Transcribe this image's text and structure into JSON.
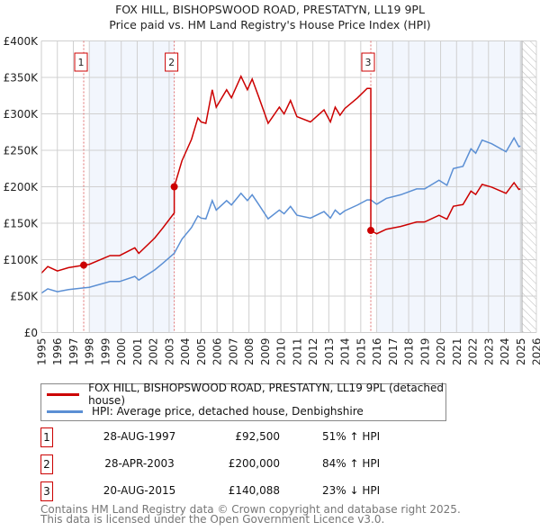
{
  "chart_data": {
    "type": "line",
    "title": "FOX HILL, BISHOPSWOOD ROAD, PRESTATYN, LL19 9PL",
    "subtitle": "Price paid vs. HM Land Registry's House Price Index (HPI)",
    "xlim": [
      1995,
      2026
    ],
    "ylim": [
      0,
      400000
    ],
    "y_ticks": [
      0,
      50000,
      100000,
      150000,
      200000,
      250000,
      300000,
      350000,
      400000
    ],
    "y_tick_labels": [
      "£0",
      "£50K",
      "£100K",
      "£150K",
      "£200K",
      "£250K",
      "£300K",
      "£350K",
      "£400K"
    ],
    "x_ticks": [
      "1995",
      "1996",
      "1997",
      "1998",
      "1999",
      "2000",
      "2001",
      "2002",
      "2003",
      "2004",
      "2005",
      "2006",
      "2007",
      "2008",
      "2009",
      "2010",
      "2011",
      "2012",
      "2013",
      "2014",
      "2015",
      "2016",
      "2017",
      "2018",
      "2019",
      "2020",
      "2021",
      "2022",
      "2023",
      "2024",
      "2025",
      "2026"
    ],
    "grid": true,
    "shaded_ranges": [
      [
        1998.0,
        2003.32
      ],
      [
        2016.0,
        2025.1
      ]
    ],
    "hatched_range": [
      2025.1,
      2026
    ],
    "colors": {
      "property": "#cc0000",
      "hpi": "#5b8fd4",
      "marker_border": "#cc0000"
    },
    "series": [
      {
        "name": "FOX HILL, BISHOPSWOOD ROAD, PRESTATYN, LL19 9PL (detached house)",
        "color": "#cc0000",
        "derived_from_hpi_ratios": [
          {
            "from": 1995,
            "ratio": 1.509
          },
          {
            "from": 2003.32,
            "ratio": 1.84
          },
          {
            "from": 2015.63,
            "ratio": 0.77
          }
        ]
      },
      {
        "name": "HPI: Average price, detached house, Denbighshire",
        "color": "#5b8fd4",
        "x": [
          1995.0,
          1995.4,
          1996.0,
          1996.7,
          1997.65,
          1998.0,
          1999.3,
          1999.9,
          2000.85,
          2001.1,
          2002.1,
          2002.6,
          2003.32,
          2003.8,
          2004.4,
          2004.8,
          2005.0,
          2005.3,
          2005.7,
          2005.95,
          2006.6,
          2006.9,
          2007.5,
          2007.9,
          2008.2,
          2008.6,
          2009.2,
          2009.9,
          2010.2,
          2010.6,
          2011.0,
          2011.85,
          2012.7,
          2013.1,
          2013.4,
          2013.7,
          2014.0,
          2014.8,
          2015.4,
          2015.63,
          2016.0,
          2016.6,
          2017.5,
          2018.5,
          2019.0,
          2019.9,
          2020.4,
          2020.8,
          2021.4,
          2021.9,
          2022.2,
          2022.6,
          2023.2,
          2024.1,
          2024.6,
          2024.9,
          2025.0
        ],
        "values": [
          54000,
          60000,
          56000,
          59000,
          61300,
          62000,
          70000,
          70000,
          77000,
          72000,
          86000,
          95000,
          108700,
          128000,
          144000,
          160000,
          157000,
          156000,
          181000,
          168000,
          181000,
          175000,
          191000,
          181000,
          189000,
          176000,
          156000,
          168000,
          163000,
          173000,
          161000,
          157000,
          166000,
          157000,
          168000,
          162000,
          167000,
          175000,
          182000,
          182000,
          176000,
          184000,
          189000,
          197000,
          197000,
          209000,
          202000,
          225000,
          228000,
          252000,
          246000,
          264000,
          259000,
          248000,
          267000,
          255000,
          256000
        ]
      }
    ],
    "sales": [
      {
        "n": "1",
        "x": 1997.65,
        "value": 92500
      },
      {
        "n": "2",
        "x": 2003.32,
        "value": 200000
      },
      {
        "n": "3",
        "x": 2015.63,
        "value": 140088
      }
    ]
  },
  "legend": [
    "FOX HILL, BISHOPSWOOD ROAD, PRESTATYN, LL19 9PL (detached house)",
    "HPI: Average price, detached house, Denbighshire"
  ],
  "transactions": [
    {
      "n": "1",
      "date": "28-AUG-1997",
      "price": "£92,500",
      "hpi": "51% ↑ HPI"
    },
    {
      "n": "2",
      "date": "28-APR-2003",
      "price": "£200,000",
      "hpi": "84% ↑ HPI"
    },
    {
      "n": "3",
      "date": "20-AUG-2015",
      "price": "£140,088",
      "hpi": "23% ↓ HPI"
    }
  ],
  "footer": [
    "Contains HM Land Registry data © Crown copyright and database right 2025.",
    "This data is licensed under the Open Government Licence v3.0."
  ]
}
